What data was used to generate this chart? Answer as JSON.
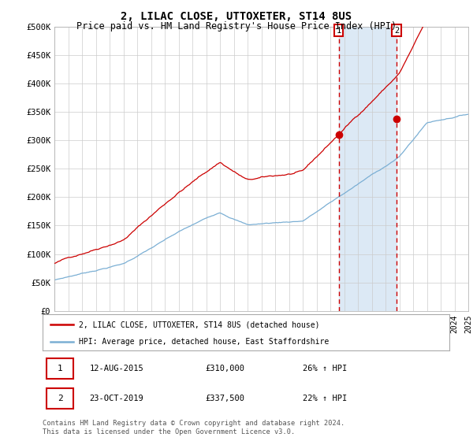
{
  "title": "2, LILAC CLOSE, UTTOXETER, ST14 8US",
  "subtitle": "Price paid vs. HM Land Registry's House Price Index (HPI)",
  "title_fontsize": 10,
  "subtitle_fontsize": 8.5,
  "x_start_year": 1995,
  "x_end_year": 2025,
  "ylim": [
    0,
    500000
  ],
  "yticks": [
    0,
    50000,
    100000,
    150000,
    200000,
    250000,
    300000,
    350000,
    400000,
    450000,
    500000
  ],
  "ytick_labels": [
    "£0",
    "£50K",
    "£100K",
    "£150K",
    "£200K",
    "£250K",
    "£300K",
    "£350K",
    "£400K",
    "£450K",
    "£500K"
  ],
  "event1_year": 2015.6,
  "event1_price": 310000,
  "event1_label": "1",
  "event1_date": "12-AUG-2015",
  "event1_pct": "26%",
  "event2_year": 2019.8,
  "event2_price": 337500,
  "event2_label": "2",
  "event2_date": "23-OCT-2019",
  "event2_pct": "22%",
  "highlight_color": "#dce9f5",
  "dashed_color": "#cc0000",
  "red_line_color": "#cc0000",
  "blue_line_color": "#7bafd4",
  "legend1_label": "2, LILAC CLOSE, UTTOXETER, ST14 8US (detached house)",
  "legend2_label": "HPI: Average price, detached house, East Staffordshire",
  "footer": "Contains HM Land Registry data © Crown copyright and database right 2024.\nThis data is licensed under the Open Government Licence v3.0.",
  "background_color": "#ffffff",
  "grid_color": "#cccccc"
}
